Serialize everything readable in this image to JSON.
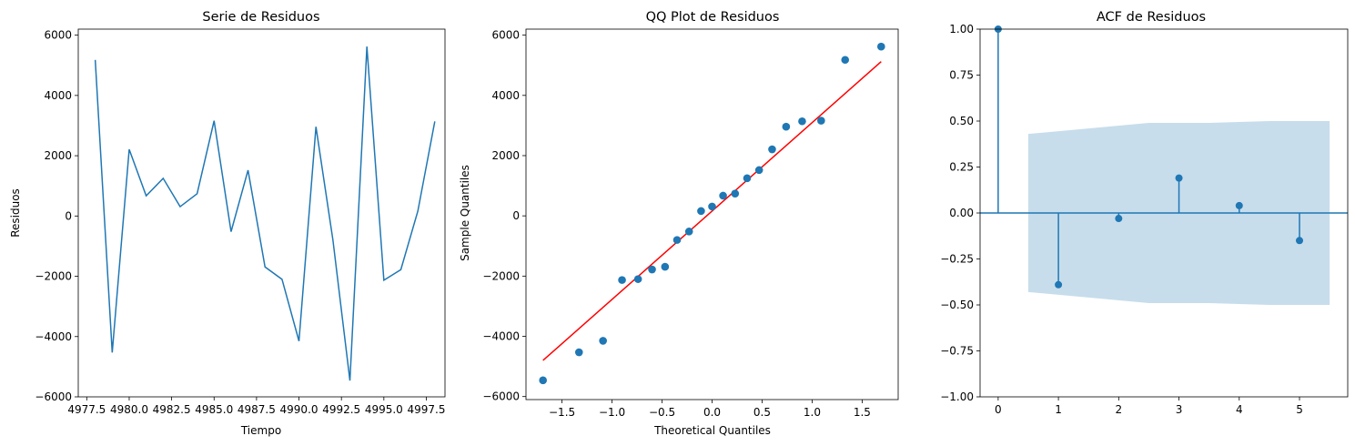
{
  "chart_data": [
    {
      "type": "line",
      "title": "Serie de Residuos",
      "xlabel": "Tiempo",
      "ylabel": "Residuos",
      "xlim": [
        4977.0,
        4998.6
      ],
      "ylim": [
        -6000,
        6200
      ],
      "xticks": [
        4977.5,
        4980.0,
        4982.5,
        4985.0,
        4987.5,
        4990.0,
        4992.5,
        4995.0,
        4997.5
      ],
      "xtick_labels": [
        "4977.5",
        "4980.0",
        "4982.5",
        "4985.0",
        "4987.5",
        "4990.0",
        "4992.5",
        "4995.0",
        "4997.5"
      ],
      "yticks": [
        -6000,
        -4000,
        -2000,
        0,
        2000,
        4000,
        6000
      ],
      "ytick_labels": [
        "−6000",
        "−4000",
        "−2000",
        "0",
        "2000",
        "4000",
        "6000"
      ],
      "x": [
        4978,
        4979,
        4980,
        4981,
        4982,
        4983,
        4984,
        4985,
        4986,
        4987,
        4988,
        4989,
        4990,
        4991,
        4992,
        4993,
        4994,
        4995,
        4996,
        4997,
        4998
      ],
      "values": [
        5180,
        -4530,
        2210,
        670,
        1250,
        310,
        740,
        3160,
        -520,
        1520,
        -1690,
        -2100,
        -4150,
        2960,
        -800,
        -5460,
        5620,
        -2130,
        -1780,
        160,
        3140
      ],
      "color": "#1f77b4"
    },
    {
      "type": "scatter",
      "title": "QQ Plot de Residuos",
      "xlabel": "Theoretical Quantiles",
      "ylabel": "Sample Quantiles",
      "xlim": [
        -1.86,
        1.86
      ],
      "ylim": [
        -6100,
        6200
      ],
      "xticks": [
        -1.5,
        -1.0,
        -0.5,
        0.0,
        0.5,
        1.0,
        1.5
      ],
      "xtick_labels": [
        "−1.5",
        "−1.0",
        "−0.5",
        "0.0",
        "0.5",
        "1.0",
        "1.5"
      ],
      "yticks": [
        -6000,
        -4000,
        -2000,
        0,
        2000,
        4000,
        6000
      ],
      "ytick_labels": [
        "−6000",
        "−4000",
        "−2000",
        "0",
        "2000",
        "4000",
        "6000"
      ],
      "x": [
        -1.69,
        -1.33,
        -1.09,
        -0.9,
        -0.74,
        -0.6,
        -0.47,
        -0.35,
        -0.23,
        -0.11,
        0.0,
        0.11,
        0.23,
        0.35,
        0.47,
        0.6,
        0.74,
        0.9,
        1.09,
        1.33,
        1.69
      ],
      "y": [
        -5460,
        -4530,
        -4150,
        -2130,
        -2100,
        -1780,
        -1690,
        -800,
        -520,
        160,
        310,
        670,
        740,
        1250,
        1520,
        2210,
        2960,
        3140,
        3160,
        5180,
        5620
      ],
      "reference_line": {
        "x": [
          -1.69,
          1.69
        ],
        "y": [
          -4800,
          5120
        ],
        "color": "#ff0000"
      },
      "color": "#1f77b4"
    },
    {
      "type": "stem",
      "title": "ACF de Residuos",
      "xlim": [
        -0.3,
        5.8
      ],
      "ylim": [
        -1.0,
        1.0
      ],
      "xticks": [
        0,
        1,
        2,
        3,
        4,
        5
      ],
      "xtick_labels": [
        "0",
        "1",
        "2",
        "3",
        "4",
        "5"
      ],
      "yticks": [
        -1.0,
        -0.75,
        -0.5,
        -0.25,
        0.0,
        0.25,
        0.5,
        0.75,
        1.0
      ],
      "ytick_labels": [
        "−1.00",
        "−0.75",
        "−0.50",
        "−0.25",
        "0.00",
        "0.25",
        "0.50",
        "0.75",
        "1.00"
      ],
      "lags": [
        0,
        1,
        2,
        3,
        4,
        5
      ],
      "values": [
        1.0,
        -0.39,
        -0.03,
        0.19,
        0.04,
        -0.15
      ],
      "confidence_band": {
        "x": [
          0.5,
          1.5,
          2.5,
          3.5,
          4.5,
          5.5
        ],
        "upper": [
          0.43,
          0.46,
          0.49,
          0.49,
          0.5,
          0.5
        ],
        "lower": [
          -0.43,
          -0.46,
          -0.49,
          -0.49,
          -0.5,
          -0.5
        ],
        "color": "#1f77b4"
      },
      "color": "#1f77b4"
    }
  ]
}
